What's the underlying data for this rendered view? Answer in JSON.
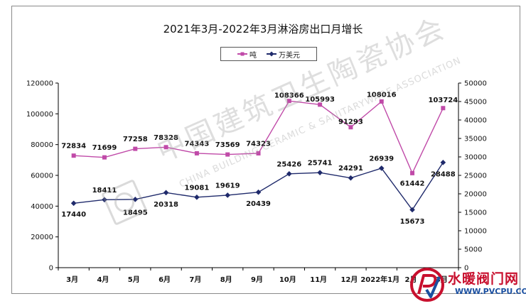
{
  "title": "2021年3月-2022年3月淋浴房出口月增长",
  "legend": [
    "吨",
    "万美元"
  ],
  "watermark": {
    "chinese": "中国建筑卫生陶瓷协会",
    "english": "CHINA BUILDING CERAMIC & SANITARYWARE ASSOCIATION"
  },
  "badge": {
    "brand": "水暖阀门网",
    "url": "WWW.PVCPU.COM"
  },
  "colors": {
    "tons": "#c04aa8",
    "usd": "#1f2a6b",
    "axis": "#000000"
  },
  "chart_data": {
    "type": "line",
    "title": "2021年3月-2022年3月淋浴房出口月增长",
    "categories": [
      "3月",
      "4月",
      "5月",
      "6月",
      "7月",
      "8月",
      "9月",
      "10月",
      "11月",
      "12月",
      "2022年1月",
      "2月",
      "3月"
    ],
    "series": [
      {
        "name": "吨",
        "axis": "left",
        "values": [
          72834,
          71699,
          77258,
          78328,
          74343,
          73569,
          74323,
          108366,
          105993,
          91293,
          108016,
          61442,
          103724
        ],
        "labels": [
          "72834",
          "71699",
          "77258",
          "78328",
          "74343",
          "73569",
          "74323",
          "108366",
          "105993",
          "91293",
          "108016",
          "61442",
          "103724"
        ],
        "marker": "square",
        "color": "#c04aa8"
      },
      {
        "name": "万美元",
        "axis": "right",
        "values": [
          17440,
          18411,
          18495,
          20318,
          19081,
          19619,
          20439,
          25426,
          25741,
          24291,
          26939,
          15673,
          28488
        ],
        "labels": [
          "17440",
          "18411",
          "18495",
          "20318",
          "19081",
          "19619",
          "20439",
          "25426",
          "25741",
          "24291",
          "26939",
          "15673",
          "28488"
        ],
        "marker": "diamond",
        "color": "#1f2a6b"
      }
    ],
    "y_left": {
      "range": [
        0,
        120000
      ],
      "ticks": [
        "0",
        "20000",
        "40000",
        "60000",
        "80000",
        "100000",
        "120000"
      ],
      "tick_values": [
        0,
        20000,
        40000,
        60000,
        80000,
        100000,
        120000
      ]
    },
    "y_right": {
      "range": [
        0,
        50000
      ],
      "ticks": [
        "0",
        "5000",
        "10000",
        "15000",
        "20000",
        "25000",
        "30000",
        "35000",
        "40000",
        "45000",
        "50000"
      ],
      "tick_values": [
        0,
        5000,
        10000,
        15000,
        20000,
        25000,
        30000,
        35000,
        40000,
        45000,
        50000
      ]
    },
    "grid": false,
    "legend_position": "top-center"
  }
}
